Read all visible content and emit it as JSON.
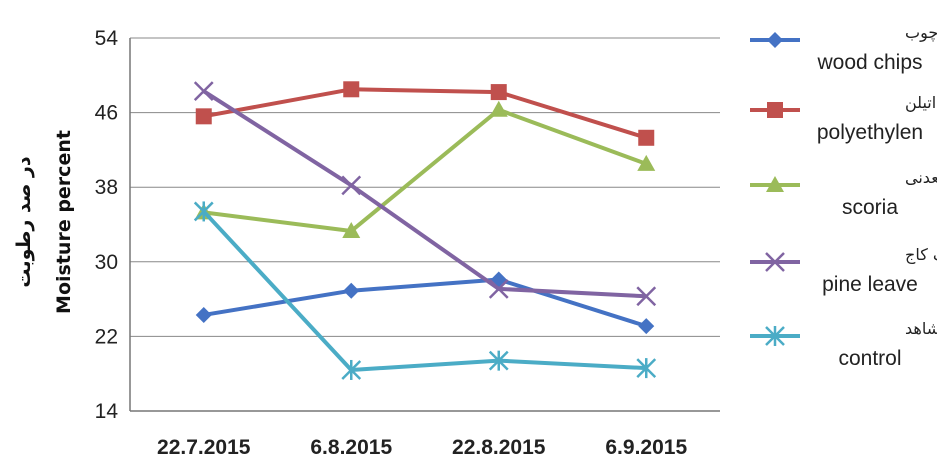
{
  "chart_data": {
    "type": "line",
    "categories": [
      "22.7.2015",
      "6.8.2015",
      "22.8.2015",
      "6.9.2015"
    ],
    "ylabel_fa": "در صد رطوبت",
    "ylabel_en": "Moisture percent",
    "ylim": [
      14,
      54
    ],
    "yticks": [
      "54",
      "46",
      "38",
      "30",
      "22",
      "14"
    ],
    "grid": true,
    "legend_position": "right",
    "series": [
      {
        "name_fa": "چیپس چوب",
        "name_en": "wood chips",
        "color": "#4472c4",
        "marker": "diamond",
        "values": [
          24.3,
          26.9,
          28.1,
          23.1
        ]
      },
      {
        "name_fa": "پلی اتیلن",
        "name_en": "polyethylen",
        "color": "#c0504d",
        "marker": "square",
        "values": [
          45.6,
          48.5,
          48.2,
          43.3
        ]
      },
      {
        "name_fa": "پوکه معدنی",
        "name_en": "scoria",
        "color": "#9bbb59",
        "marker": "triangle",
        "values": [
          35.3,
          33.3,
          46.3,
          40.5
        ]
      },
      {
        "name_fa": "برگ کاج",
        "name_en": "pine leave",
        "color": "#8064a2",
        "marker": "x",
        "values": [
          48.3,
          38.2,
          27.1,
          26.3
        ]
      },
      {
        "name_fa": "شاهد",
        "name_en": "control",
        "color": "#4bacc6",
        "marker": "star",
        "values": [
          35.4,
          18.4,
          19.4,
          18.6
        ]
      }
    ]
  }
}
